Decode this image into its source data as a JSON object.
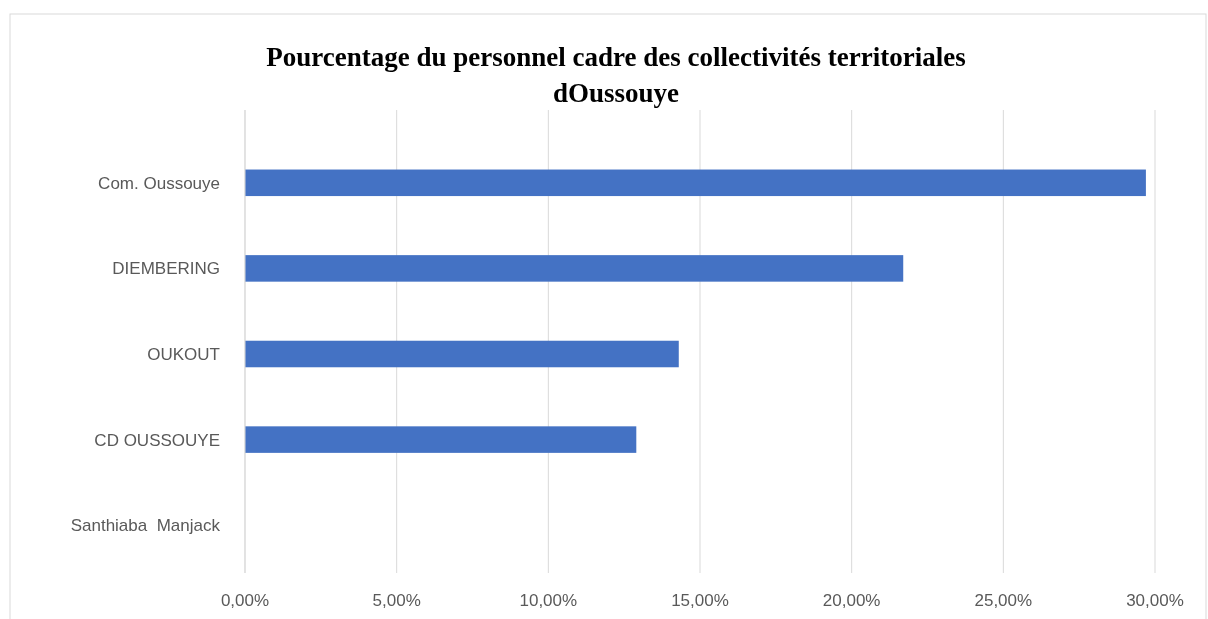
{
  "chart_data": {
    "type": "bar",
    "orientation": "horizontal",
    "title": "Pourcentage du personnel cadre des collectivités territoriales dOussouye",
    "categories": [
      "Com. Oussouye",
      "DIEMBERING",
      "OUKOUT",
      "CD OUSSOUYE",
      "Santhiaba  Manjack"
    ],
    "values": [
      29.7,
      21.7,
      14.3,
      12.9,
      0
    ],
    "color": "#4472c4",
    "xlim": [
      0,
      30
    ],
    "xticks": [
      {
        "value": 0,
        "label": "0,00%"
      },
      {
        "value": 5,
        "label": "5,00%"
      },
      {
        "value": 10,
        "label": "10,00%"
      },
      {
        "value": 15,
        "label": "15,00%"
      },
      {
        "value": 20,
        "label": "20,00%"
      },
      {
        "value": 25,
        "label": "25,00%"
      },
      {
        "value": 30,
        "label": "30,00%"
      }
    ],
    "grid": "x"
  }
}
